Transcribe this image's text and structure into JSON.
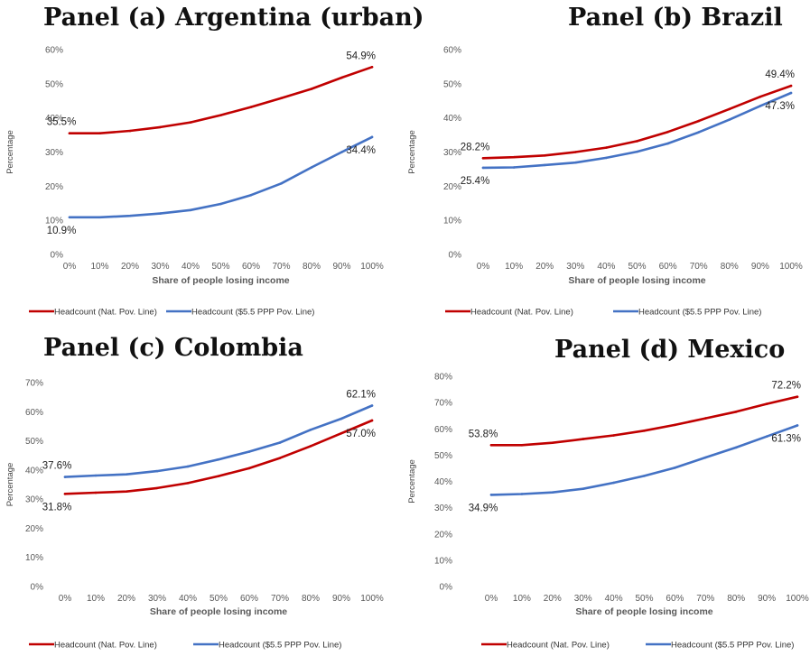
{
  "chart_data": [
    {
      "type": "line",
      "title": "Panel (a) Argentina (urban)",
      "xlabel": "Share of people losing income",
      "ylabel": "Percentage",
      "categories": [
        "0%",
        "10%",
        "20%",
        "30%",
        "40%",
        "50%",
        "60%",
        "70%",
        "80%",
        "90%",
        "100%"
      ],
      "ylim": [
        0,
        60
      ],
      "yticks": [
        "0%",
        "10%",
        "20%",
        "30%",
        "40%",
        "50%",
        "60%"
      ],
      "series": [
        {
          "name": "Headcount (Nat. Pov. Line)",
          "color": "#C00000",
          "values": [
            35.5,
            35.5,
            36.2,
            37.3,
            38.7,
            40.8,
            43.2,
            45.8,
            48.5,
            51.8,
            54.9
          ]
        },
        {
          "name": "Headcount ($5.5 PPP Pov. Line)",
          "color": "#4472C4",
          "values": [
            10.9,
            10.9,
            11.3,
            12.0,
            13.0,
            14.8,
            17.4,
            20.8,
            25.5,
            30.0,
            34.4
          ]
        }
      ],
      "annotations": [
        {
          "series": 0,
          "index": 0,
          "text": "35.5%",
          "pos": "above"
        },
        {
          "series": 0,
          "index": 10,
          "text": "54.9%",
          "pos": "above"
        },
        {
          "series": 1,
          "index": 0,
          "text": "10.9%",
          "pos": "below"
        },
        {
          "series": 1,
          "index": 10,
          "text": "34.4%",
          "pos": "below"
        }
      ],
      "legend": "bottom"
    },
    {
      "type": "line",
      "title": "Panel (b) Brazil",
      "xlabel": "Share of people losing income",
      "ylabel": "Percentage",
      "categories": [
        "0%",
        "10%",
        "20%",
        "30%",
        "40%",
        "50%",
        "60%",
        "70%",
        "80%",
        "90%",
        "100%"
      ],
      "ylim": [
        0,
        60
      ],
      "yticks": [
        "0%",
        "10%",
        "20%",
        "30%",
        "40%",
        "50%",
        "60%"
      ],
      "series": [
        {
          "name": "Headcount (Nat. Pov. Line)",
          "color": "#C00000",
          "values": [
            28.2,
            28.5,
            29.0,
            30.0,
            31.3,
            33.2,
            35.9,
            39.1,
            42.6,
            46.2,
            49.4
          ]
        },
        {
          "name": "Headcount ($5.5 PPP Pov. Line)",
          "color": "#4472C4",
          "values": [
            25.4,
            25.5,
            26.2,
            26.9,
            28.3,
            30.1,
            32.5,
            35.8,
            39.5,
            43.5,
            47.3
          ]
        }
      ],
      "annotations": [
        {
          "series": 0,
          "index": 0,
          "text": "28.2%",
          "pos": "above"
        },
        {
          "series": 0,
          "index": 10,
          "text": "49.4%",
          "pos": "above"
        },
        {
          "series": 1,
          "index": 0,
          "text": "25.4%",
          "pos": "below"
        },
        {
          "series": 1,
          "index": 10,
          "text": "47.3%",
          "pos": "below"
        }
      ],
      "legend": "bottom"
    },
    {
      "type": "line",
      "title": "Panel (c) Colombia",
      "xlabel": "Share of people losing income",
      "ylabel": "Percentage",
      "categories": [
        "0%",
        "10%",
        "20%",
        "30%",
        "40%",
        "50%",
        "60%",
        "70%",
        "80%",
        "90%",
        "100%"
      ],
      "ylim": [
        0,
        70
      ],
      "yticks": [
        "0%",
        "10%",
        "20%",
        "30%",
        "40%",
        "50%",
        "60%",
        "70%"
      ],
      "series": [
        {
          "name": "Headcount (Nat. Pov. Line)",
          "color": "#C00000",
          "values": [
            31.8,
            32.2,
            32.6,
            33.8,
            35.5,
            37.9,
            40.6,
            44.1,
            48.2,
            52.6,
            57.0
          ]
        },
        {
          "name": "Headcount ($5.5 PPP Pov. Line)",
          "color": "#4472C4",
          "values": [
            37.6,
            38.1,
            38.5,
            39.6,
            41.2,
            43.6,
            46.3,
            49.4,
            53.8,
            57.6,
            62.1
          ]
        }
      ],
      "annotations": [
        {
          "series": 1,
          "index": 0,
          "text": "37.6%",
          "pos": "above"
        },
        {
          "series": 1,
          "index": 10,
          "text": "62.1%",
          "pos": "above"
        },
        {
          "series": 0,
          "index": 0,
          "text": "31.8%",
          "pos": "below"
        },
        {
          "series": 0,
          "index": 10,
          "text": "57.0%",
          "pos": "below"
        }
      ],
      "legend": "bottom"
    },
    {
      "type": "line",
      "title": "Panel (d) Mexico",
      "xlabel": "Share of people losing income",
      "ylabel": "Percentage",
      "categories": [
        "0%",
        "10%",
        "20%",
        "30%",
        "40%",
        "50%",
        "60%",
        "70%",
        "80%",
        "90%",
        "100%"
      ],
      "ylim": [
        0,
        80
      ],
      "yticks": [
        "0%",
        "10%",
        "20%",
        "30%",
        "40%",
        "50%",
        "60%",
        "70%",
        "80%"
      ],
      "series": [
        {
          "name": "Headcount (Nat. Pov. Line)",
          "color": "#C00000",
          "values": [
            53.8,
            53.8,
            54.7,
            56.1,
            57.5,
            59.3,
            61.5,
            64.0,
            66.5,
            69.5,
            72.2
          ]
        },
        {
          "name": "Headcount ($5.5 PPP Pov. Line)",
          "color": "#4472C4",
          "values": [
            34.9,
            35.2,
            35.8,
            37.2,
            39.5,
            42.1,
            45.2,
            49.1,
            52.9,
            57.1,
            61.3
          ]
        }
      ],
      "annotations": [
        {
          "series": 0,
          "index": 0,
          "text": "53.8%",
          "pos": "above"
        },
        {
          "series": 0,
          "index": 10,
          "text": "72.2%",
          "pos": "above"
        },
        {
          "series": 1,
          "index": 0,
          "text": "34.9%",
          "pos": "below"
        },
        {
          "series": 1,
          "index": 10,
          "text": "61.3%",
          "pos": "below"
        }
      ],
      "legend": "bottom"
    }
  ]
}
